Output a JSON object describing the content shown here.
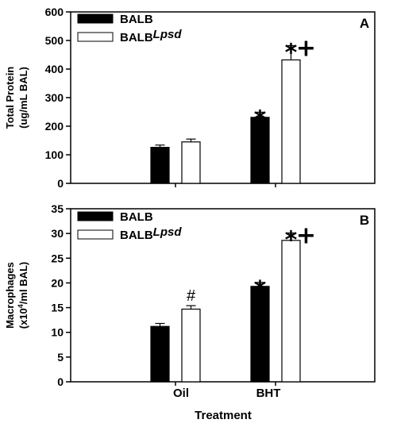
{
  "chart_data": [
    {
      "type": "bar",
      "panel_label": "A",
      "ylabel_line1": "Total Protein",
      "ylabel_line2": "(ug/mL BAL)",
      "ylim": [
        0,
        600
      ],
      "yticks": [
        "0",
        "100",
        "200",
        "300",
        "400",
        "500",
        "600"
      ],
      "categories": [
        "Oil",
        "BHT"
      ],
      "series": [
        {
          "name": "BALB",
          "fill": "#000000",
          "values": [
            126,
            231
          ],
          "errors": [
            8,
            18
          ]
        },
        {
          "name": "BALB",
          "name_suffix": "Lpsd",
          "fill": "#ffffff",
          "values": [
            145,
            432
          ],
          "errors": [
            10,
            50
          ]
        }
      ],
      "annotations": [
        {
          "category": "BHT",
          "series": 0,
          "text": "*"
        },
        {
          "category": "BHT",
          "series": 1,
          "text": "*"
        },
        {
          "category": "BHT",
          "series": 1,
          "text": "+"
        }
      ],
      "legend_position": "top-left"
    },
    {
      "type": "bar",
      "panel_label": "B",
      "ylabel_line1": "Macrophages",
      "ylabel_line2_pre": "(x10",
      "ylabel_line2_sup": "4",
      "ylabel_line2_post": "/ml BAL)",
      "ylim": [
        0,
        35
      ],
      "yticks": [
        "0",
        "5",
        "10",
        "15",
        "20",
        "25",
        "30",
        "35"
      ],
      "categories": [
        "Oil",
        "BHT"
      ],
      "series": [
        {
          "name": "BALB",
          "fill": "#000000",
          "values": [
            11.2,
            19.3
          ],
          "errors": [
            0.6,
            0.8
          ]
        },
        {
          "name": "BALB",
          "name_suffix": "Lpsd",
          "fill": "#ffffff",
          "values": [
            14.7,
            28.6
          ],
          "errors": [
            0.7,
            1.5
          ]
        }
      ],
      "annotations": [
        {
          "category": "Oil",
          "series": 1,
          "text": "#"
        },
        {
          "category": "BHT",
          "series": 0,
          "text": "*"
        },
        {
          "category": "BHT",
          "series": 1,
          "text": "*"
        },
        {
          "category": "BHT",
          "series": 1,
          "text": "+"
        }
      ],
      "legend_position": "top-left"
    }
  ],
  "x_tick_labels": [
    "Oil",
    "BHT"
  ],
  "xlabel": "Treatment"
}
